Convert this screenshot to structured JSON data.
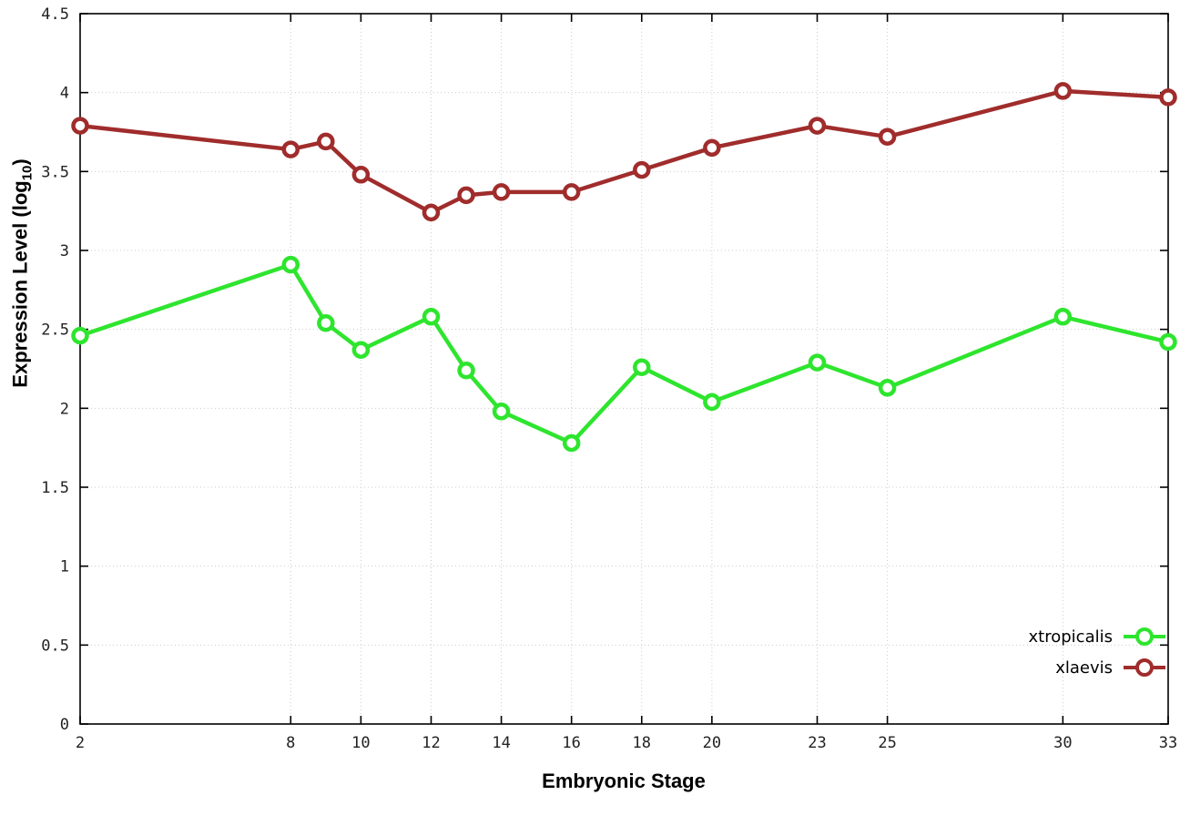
{
  "chart_data": {
    "type": "line",
    "title": "",
    "xlabel": "Embryonic Stage",
    "ylabel_prefix": "Expression Level (log",
    "ylabel_sub": "10",
    "ylabel_suffix": ")",
    "x": [
      2,
      8,
      9,
      10,
      12,
      13,
      14,
      16,
      18,
      20,
      23,
      25,
      30,
      33
    ],
    "series": [
      {
        "name": "xtropicalis",
        "color": "#2ee52e",
        "values": [
          2.46,
          2.91,
          2.54,
          2.37,
          2.58,
          2.24,
          1.98,
          1.78,
          2.26,
          2.04,
          2.29,
          2.13,
          2.58,
          2.42
        ]
      },
      {
        "name": "xlaevis",
        "color": "#a02c2c",
        "values": [
          3.79,
          3.64,
          3.69,
          3.48,
          3.24,
          3.35,
          3.37,
          3.37,
          3.51,
          3.65,
          3.79,
          3.72,
          4.01,
          3.97
        ]
      }
    ],
    "xlim": [
      2,
      33
    ],
    "ylim": [
      0,
      4.5
    ],
    "xticks": [
      2,
      8,
      10,
      12,
      14,
      16,
      18,
      20,
      23,
      25,
      30,
      33
    ],
    "xtick_labels": [
      "2",
      "8",
      "10",
      "12",
      "14",
      "16",
      "18",
      "20",
      "23",
      "25",
      "30",
      "33"
    ],
    "yticks": [
      0,
      0.5,
      1,
      1.5,
      2,
      2.5,
      3,
      3.5,
      4,
      4.5
    ],
    "ytick_labels": [
      "0",
      "0.5",
      "1",
      "1.5",
      "2",
      "2.5",
      "3",
      "3.5",
      "4",
      "4.5"
    ],
    "grid": true,
    "legend_position": "bottom-right",
    "colors": {
      "axis": "#000000",
      "grid": "#cccccc",
      "tick_text": "#222222",
      "marker_fill": "#ffffff"
    }
  }
}
